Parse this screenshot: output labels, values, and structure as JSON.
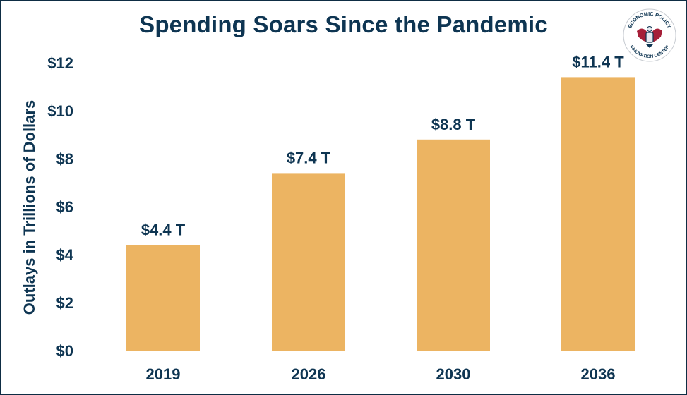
{
  "chart_data": {
    "type": "bar",
    "title": "Spending Soars Since the Pandemic",
    "xlabel": "",
    "ylabel": "Outlays in Trillions of Dollars",
    "categories": [
      "2019",
      "2026",
      "2030",
      "2036"
    ],
    "values": [
      4.4,
      7.4,
      8.8,
      11.4
    ],
    "data_labels": [
      "$4.4 T",
      "$7.4 T",
      "$8.8 T",
      "$11.4 T"
    ],
    "ylim": [
      0,
      12
    ],
    "yticks": [
      0,
      2,
      4,
      6,
      8,
      10,
      12
    ],
    "ytick_labels": [
      "$0",
      "$2",
      "$4",
      "$6",
      "$8",
      "$10",
      "$12"
    ],
    "grid": false,
    "legend": "none",
    "bar_color": "#ecb462",
    "text_color": "#0e3552"
  },
  "logo": {
    "text_top": "ECONOMIC POLICY",
    "text_bottom": "INNOVATION CENTER"
  }
}
